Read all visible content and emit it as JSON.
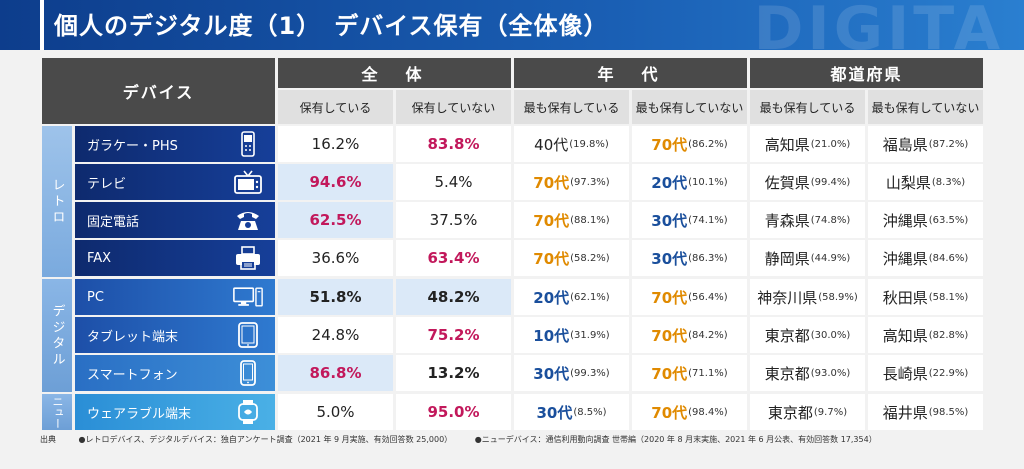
{
  "header": {
    "title": "個人のデジタル度（1）　デバイス保有（全体像）",
    "watermark": "DIGITA"
  },
  "table": {
    "device_header": "デバイス",
    "groups": [
      {
        "label": "全　体",
        "sub": [
          "保有している",
          "保有していない"
        ]
      },
      {
        "label": "年　代",
        "sub": [
          "最も保有している",
          "最も保有していない"
        ]
      },
      {
        "label": "都道府県",
        "sub": [
          "最も保有している",
          "最も保有していない"
        ]
      }
    ],
    "categories": [
      "レトロ",
      "デジタル",
      "ニュー"
    ],
    "rows": [
      {
        "device": "ガラケー・PHS",
        "icon": "feature-phone-icon",
        "own": "16.2%",
        "not_own": "83.8%",
        "age_most": "40代",
        "age_most_pct": "(19.8%)",
        "age_least": "70代",
        "age_least_pct": "(86.2%)",
        "pref_most": "高知県",
        "pref_most_pct": "(21.0%)",
        "pref_least": "福島県",
        "pref_least_pct": "(87.2%)"
      },
      {
        "device": "テレビ",
        "icon": "tv-icon",
        "own": "94.6%",
        "not_own": "5.4%",
        "age_most": "70代",
        "age_most_pct": "(97.3%)",
        "age_least": "20代",
        "age_least_pct": "(10.1%)",
        "pref_most": "佐賀県",
        "pref_most_pct": "(99.4%)",
        "pref_least": "山梨県",
        "pref_least_pct": "(8.3%)"
      },
      {
        "device": "固定電話",
        "icon": "landline-phone-icon",
        "own": "62.5%",
        "not_own": "37.5%",
        "age_most": "70代",
        "age_most_pct": "(88.1%)",
        "age_least": "30代",
        "age_least_pct": "(74.1%)",
        "pref_most": "青森県",
        "pref_most_pct": "(74.8%)",
        "pref_least": "沖縄県",
        "pref_least_pct": "(63.5%)"
      },
      {
        "device": "FAX",
        "icon": "fax-icon",
        "own": "36.6%",
        "not_own": "63.4%",
        "age_most": "70代",
        "age_most_pct": "(58.2%)",
        "age_least": "30代",
        "age_least_pct": "(86.3%)",
        "pref_most": "静岡県",
        "pref_most_pct": "(44.9%)",
        "pref_least": "沖縄県",
        "pref_least_pct": "(84.6%)"
      },
      {
        "device": "PC",
        "icon": "pc-icon",
        "own": "51.8%",
        "not_own": "48.2%",
        "age_most": "20代",
        "age_most_pct": "(62.1%)",
        "age_least": "70代",
        "age_least_pct": "(56.4%)",
        "pref_most": "神奈川県",
        "pref_most_pct": "(58.9%)",
        "pref_least": "秋田県",
        "pref_least_pct": "(58.1%)"
      },
      {
        "device": "タブレット端末",
        "icon": "tablet-icon",
        "own": "24.8%",
        "not_own": "75.2%",
        "age_most": "10代",
        "age_most_pct": "(31.9%)",
        "age_least": "70代",
        "age_least_pct": "(84.2%)",
        "pref_most": "東京都",
        "pref_most_pct": "(30.0%)",
        "pref_least": "高知県",
        "pref_least_pct": "(82.8%)"
      },
      {
        "device": "スマートフォン",
        "icon": "smartphone-icon",
        "own": "86.8%",
        "not_own": "13.2%",
        "age_most": "30代",
        "age_most_pct": "(99.3%)",
        "age_least": "70代",
        "age_least_pct": "(71.1%)",
        "pref_most": "東京都",
        "pref_most_pct": "(93.0%)",
        "pref_least": "長崎県",
        "pref_least_pct": "(22.9%)"
      },
      {
        "device": "ウェアラブル端末",
        "icon": "wearable-icon",
        "own": "5.0%",
        "not_own": "95.0%",
        "age_most": "30代",
        "age_most_pct": "(8.5%)",
        "age_least": "70代",
        "age_least_pct": "(98.4%)",
        "pref_most": "東京都",
        "pref_most_pct": "(9.7%)",
        "pref_least": "福井県",
        "pref_least_pct": "(98.5%)"
      }
    ]
  },
  "footer": {
    "source_label": "出典",
    "note1": "●レトロデバイス、デジタルデバイス：独自アンケート調査（2021 年 9 月実施、有効回答数 25,000）",
    "note2": "●ニューデバイス：通信利用動向調査 世帯編（2020 年 8 月末実施、2021 年 6 月公表、有効回答数 17,354）"
  },
  "colors": {
    "header_bg": "#1a5fb4",
    "highlight_red": "#c2185b",
    "highlight_orange": "#e08a00",
    "highlight_navy": "#1a4f9c"
  }
}
